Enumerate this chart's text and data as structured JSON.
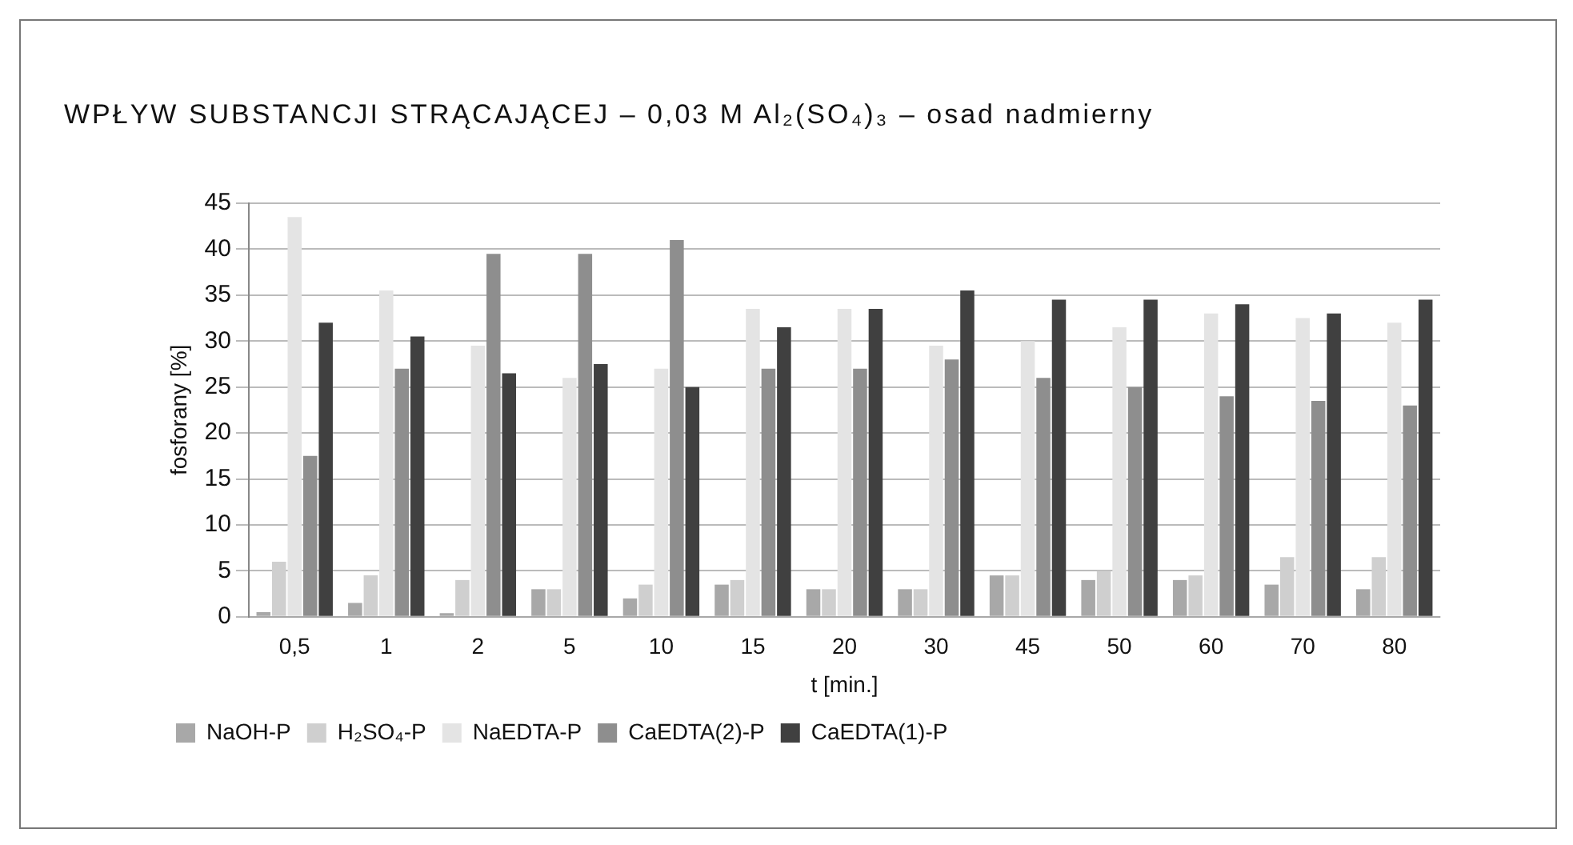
{
  "chart_data": {
    "type": "bar",
    "title": "WPŁYW SUBSTANCJI STRĄCAJĄCEJ – 0,03 M Al₂(SO₄)₃ – osad nadmierny",
    "xlabel": "t [min.]",
    "ylabel": "fosforany [%]",
    "categories": [
      "0,5",
      "1",
      "2",
      "5",
      "10",
      "15",
      "20",
      "30",
      "45",
      "50",
      "60",
      "70",
      "80"
    ],
    "series": [
      {
        "name": "NaOH-P",
        "color": "#a8a8a8",
        "values": [
          0.5,
          1.5,
          0.4,
          3,
          2,
          3.5,
          3,
          3,
          4.5,
          4,
          4,
          3.5,
          3
        ]
      },
      {
        "name": "H₂SO₄-P",
        "color": "#cfcfcf",
        "values": [
          6,
          4.5,
          4,
          3,
          3.5,
          4,
          3,
          3,
          4.5,
          5,
          4.5,
          6.5,
          6.5
        ]
      },
      {
        "name": "NaEDTA-P",
        "color": "#e4e4e4",
        "values": [
          43.5,
          35.5,
          29.5,
          26,
          27,
          33.5,
          33.5,
          29.5,
          30,
          31.5,
          33,
          32.5,
          32
        ]
      },
      {
        "name": "CaEDTA(2)-P",
        "color": "#8e8e8e",
        "values": [
          17.5,
          27,
          39.5,
          39.5,
          41,
          27,
          27,
          28,
          26,
          25,
          24,
          23.5,
          23
        ]
      },
      {
        "name": "CaEDTA(1)-P",
        "color": "#404040",
        "values": [
          32,
          30.5,
          26.5,
          27.5,
          25,
          31.5,
          33.5,
          35.5,
          34.5,
          34.5,
          34,
          33,
          34.5
        ]
      }
    ],
    "ylim": [
      0,
      45
    ],
    "yticks": [
      0,
      5,
      10,
      15,
      20,
      25,
      30,
      35,
      40,
      45
    ],
    "grid": "y",
    "legend": "bottom left"
  }
}
